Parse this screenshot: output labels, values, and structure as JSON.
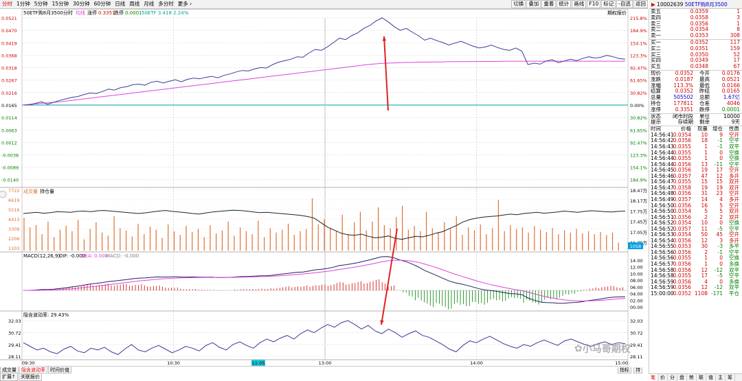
{
  "toolbar": {
    "items": [
      "分时",
      "1分钟",
      "5分钟",
      "15分钟",
      "30分钟",
      "60分钟",
      "日线",
      "周线",
      "月线",
      "多分时",
      "更多"
    ],
    "right_buttons": [
      "切换",
      "叠加",
      "重着",
      "统计",
      "画线",
      "F10",
      "标记",
      "-自选",
      "返回"
    ]
  },
  "header": {
    "code_name": "50ETF购8月3500",
    "label_fenshi": "分时",
    "label_junxian": "均线",
    "zhang_label": "涨停",
    "zhang_value": "0.3351",
    "die_label": "跌停",
    "die_value": "0.0001",
    "underlying": "50ETF 3.418 2.24%",
    "right_tag": "期权报价"
  },
  "price_axis": {
    "left": [
      "0.0521",
      "0.0470",
      "0.0419",
      "0.0368",
      "0.0318",
      "0.0267",
      "0.0216",
      "0.0165",
      "0.0114",
      "0.0063",
      "0.0012",
      "-0.0038",
      "-0.0089",
      "-0.0140"
    ],
    "right": [
      "215.8%",
      "184.9%",
      "154.1%",
      "123.3%",
      "92.47%",
      "61.65%",
      "30.82%",
      "0.00%",
      "30.82%",
      "61.65%",
      "92.47%",
      "123.3%",
      "154.1%",
      "184.9%"
    ]
  },
  "volume_panel": {
    "title": "成交量",
    "subtitle": "持仓量",
    "left_axis": [
      "7722",
      "6619",
      "5516",
      "4413",
      "3309",
      "2206",
      "1103"
    ],
    "right_axis": [
      "18.47万",
      "18.17万",
      "17.75万",
      "17.45万",
      "17.05万",
      "16.75万"
    ],
    "current_value": "1058"
  },
  "macd_panel": {
    "title": "MACD(12,26,9)",
    "dif": "DIF: -0.000",
    "dea": "DEA: 0.000",
    "macd": "MACD: -0.000",
    "left_axis": [
      "14.00",
      "12.00",
      "10.00",
      "08.00",
      "06.00",
      "04.00",
      "02.00",
      "00.00"
    ],
    "right_axis": [
      "14.00",
      "12.00",
      "10.00",
      "08.00",
      "06.00",
      "04.00",
      "02.00",
      "00.00"
    ]
  },
  "iv_panel": {
    "title": "隐含波动率: 29.43%",
    "left_axis": [
      "32.03",
      "30.72",
      "29.41",
      "28.11"
    ],
    "right_axis": [
      "32.03",
      "30.72",
      "29.41",
      "28.11"
    ]
  },
  "time_axis": [
    "09:30",
    "10:30",
    "11:05",
    "13:00",
    "14:00",
    "15:00"
  ],
  "bottom_tabs": {
    "row1": [
      "成交量",
      "隐含波动率",
      "时间价值"
    ],
    "row2": [
      "扩展↑",
      "关联报价"
    ],
    "right_small": [
      "指标",
      "持"
    ]
  },
  "right_panel": {
    "title_flag": "▶",
    "code": "10002639",
    "name": "50ETF购8月3500",
    "asks": [
      {
        "label": "卖五",
        "price": "0.0359",
        "vol": "1"
      },
      {
        "label": "卖四",
        "price": "0.0358",
        "vol": "3"
      },
      {
        "label": "卖三",
        "price": "0.0356",
        "vol": "1"
      },
      {
        "label": "卖二",
        "price": "0.0354",
        "vol": "8"
      },
      {
        "label": "卖一",
        "price": "0.0353",
        "vol": "308"
      }
    ],
    "bids": [
      {
        "label": "买一",
        "price": "0.0352",
        "vol": "117"
      },
      {
        "label": "买二",
        "price": "0.0351",
        "vol": "159"
      },
      {
        "label": "买三",
        "price": "0.0350",
        "vol": "52"
      },
      {
        "label": "买四",
        "price": "0.0349",
        "vol": "17"
      },
      {
        "label": "买五",
        "price": "0.0348",
        "vol": "67"
      }
    ],
    "stats": [
      {
        "l1": "现价",
        "v1": "0.0352",
        "l2": "今开",
        "v2": "0.0176"
      },
      {
        "l1": "涨跌",
        "v1": "0.0187",
        "l2": "最高",
        "v2": "0.0521"
      },
      {
        "l1": "涨幅",
        "v1": "113.3%",
        "l2": "最低",
        "v2": "0.0166"
      },
      {
        "l1": "结算",
        "v1": "0.0352",
        "l2": "昨结",
        "v2": "0.0165"
      },
      {
        "l1": "总量",
        "v1": "505502",
        "l2": "总额",
        "v2": "1.67亿"
      },
      {
        "l1": "持仓",
        "v1": "177811",
        "l2": "仓差",
        "v2": "4046"
      },
      {
        "l1": "涨停",
        "v1": "0.3351",
        "l2": "跌停",
        "v2": "0.0001"
      }
    ],
    "status": {
      "l1": "状态",
      "v1": "闭市时段",
      "l2": "单位",
      "v2": "10000"
    },
    "tip": {
      "l1": "提示",
      "v1": "存续期",
      "l2": "剩余",
      "v2": "9天"
    },
    "trades_header": [
      "时间",
      "价格",
      "现量",
      "增仓",
      "性质"
    ],
    "trades": [
      [
        "14:56:41",
        "0.0354",
        "10",
        "9",
        "空开"
      ],
      [
        "14:56:42",
        "0.0356",
        "18",
        "-1",
        "空平"
      ],
      [
        "14:56:43",
        "0.0355",
        "1",
        "-1",
        "双平"
      ],
      [
        "14:56:44",
        "0.0355",
        "1",
        "0",
        "空换"
      ],
      [
        "14:56:44",
        "0.0355",
        "1",
        "0",
        "空换"
      ],
      [
        "14:56:44",
        "0.0356",
        "13",
        "-11",
        "空平"
      ],
      [
        "14:56:45",
        "0.0356",
        "19",
        "17",
        "空开"
      ],
      [
        "14:56:46",
        "0.0357",
        "47",
        "12",
        "多开"
      ],
      [
        "14:56:47",
        "0.0355",
        "15",
        "15",
        "双开"
      ],
      [
        "14:56:47",
        "0.0358",
        "19",
        "19",
        "双开"
      ],
      [
        "14:56:48",
        "0.0356",
        "31",
        "23",
        "空开"
      ],
      [
        "14:56:49",
        "0.0357",
        "14",
        "4",
        "多开"
      ],
      [
        "14:56:50",
        "0.0356",
        "16",
        "5",
        "空开"
      ],
      [
        "14:56:50",
        "0.0354",
        "5",
        "5",
        "双开"
      ],
      [
        "14:56:51",
        "0.0356",
        "2",
        "2",
        "双开"
      ],
      [
        "14:56:52",
        "0.0354",
        "10",
        "0",
        "空换"
      ],
      [
        "14:56:52",
        "0.0357",
        "11",
        "-5",
        "空平"
      ],
      [
        "14:56:53",
        "0.0354",
        "50",
        "45",
        "空开"
      ],
      [
        "14:56:54",
        "0.0356",
        "12",
        "3",
        "多开"
      ],
      [
        "14:56:55",
        "0.0353",
        "30",
        "-3",
        "多平"
      ],
      [
        "14:56:56",
        "0.0356",
        "2",
        "-1",
        "空平"
      ],
      [
        "14:56:56",
        "0.0355",
        "1",
        "0",
        "空换"
      ],
      [
        "14:56:57",
        "0.0356",
        "1",
        "0",
        "多换"
      ],
      [
        "14:56:58",
        "0.0356",
        "12",
        "-12",
        "双平"
      ],
      [
        "14:56:58",
        "0.0355",
        "17",
        "-5",
        "空平"
      ],
      [
        "14:56:59",
        "0.0356",
        "4",
        "0",
        "多换"
      ],
      [
        "14:56:59",
        "0.0356",
        "12",
        "-12",
        "双平"
      ],
      [
        "15:00:00",
        "0.0352",
        "1108",
        "-171",
        "平仓"
      ]
    ],
    "bottom_tabs": [
      "笔",
      "价",
      "分",
      "盘",
      "势",
      "联",
      "值",
      "主",
      "筹"
    ]
  },
  "watermark": "小马哥期权",
  "colors": {
    "price_line": "#3a3a9a",
    "avg_line": "#e040e0",
    "volume_bar": "#e07030",
    "rise": "#d00000",
    "fall": "#008000",
    "zero_line": "#00a0a0",
    "red_arrow": "#e02020"
  },
  "series": {
    "price": [
      0.0165,
      0.0165,
      0.0172,
      0.0178,
      0.0168,
      0.0176,
      0.0184,
      0.019,
      0.0196,
      0.02,
      0.0208,
      0.0214,
      0.0212,
      0.022,
      0.023,
      0.0226,
      0.0236,
      0.024,
      0.0248,
      0.025,
      0.0246,
      0.0258,
      0.0262,
      0.0255,
      0.0262,
      0.0268,
      0.026,
      0.027,
      0.0275,
      0.0272,
      0.0278,
      0.0282,
      0.0276,
      0.0286,
      0.0292,
      0.03,
      0.0306,
      0.0304,
      0.0312,
      0.0318,
      0.0316,
      0.033,
      0.034,
      0.0346,
      0.0352,
      0.0362,
      0.036,
      0.0378,
      0.0392,
      0.0388,
      0.0402,
      0.042,
      0.0438,
      0.0432,
      0.0448,
      0.046,
      0.0478,
      0.049,
      0.0508,
      0.0521,
      0.0505,
      0.0485,
      0.047,
      0.0478,
      0.0462,
      0.0448,
      0.043,
      0.0438,
      0.0428,
      0.042,
      0.041,
      0.0418,
      0.0425,
      0.0415,
      0.0405,
      0.0398,
      0.0402,
      0.041,
      0.04,
      0.0392,
      0.0388,
      0.0398,
      0.0385,
      0.033,
      0.0336,
      0.0332,
      0.0345,
      0.035,
      0.0338,
      0.0345,
      0.0352,
      0.0346,
      0.0355,
      0.0362,
      0.0357,
      0.036,
      0.0368,
      0.0362,
      0.0355,
      0.0352
    ],
    "avg": [
      0.0165,
      0.0168,
      0.017,
      0.0172,
      0.0174,
      0.0176,
      0.0178,
      0.0181,
      0.0184,
      0.0187,
      0.019,
      0.0193,
      0.0196,
      0.0199,
      0.0202,
      0.0205,
      0.0208,
      0.0211,
      0.0214,
      0.0217,
      0.022,
      0.0223,
      0.0226,
      0.0229,
      0.0232,
      0.0235,
      0.0238,
      0.0241,
      0.0244,
      0.0247,
      0.025,
      0.0253,
      0.0256,
      0.0259,
      0.0262,
      0.0265,
      0.0268,
      0.0271,
      0.0274,
      0.0277,
      0.028,
      0.0283,
      0.0286,
      0.0289,
      0.0292,
      0.0295,
      0.0298,
      0.0301,
      0.0304,
      0.0307,
      0.031,
      0.0313,
      0.0316,
      0.0319,
      0.0322,
      0.0325,
      0.0328,
      0.0331,
      0.0333,
      0.0335,
      0.0336,
      0.0337,
      0.0338,
      0.0339,
      0.0339,
      0.034,
      0.034,
      0.0341,
      0.0341,
      0.0341,
      0.0342,
      0.0342,
      0.0342,
      0.0342,
      0.0343,
      0.0343,
      0.0343,
      0.0343,
      0.0343,
      0.0344,
      0.0344,
      0.0344,
      0.0344,
      0.0344,
      0.0344,
      0.0344,
      0.0344,
      0.0344,
      0.0344,
      0.0344,
      0.0344,
      0.0344,
      0.0344,
      0.0344,
      0.0344,
      0.0344,
      0.0344,
      0.0344,
      0.0344,
      0.0344
    ],
    "iv": [
      29.6,
      29.2,
      28.8,
      29.0,
      28.6,
      28.4,
      28.9,
      29.2,
      28.7,
      28.5,
      29.0,
      28.8,
      29.1,
      28.6,
      28.3,
      28.9,
      29.4,
      28.8,
      28.6,
      29.0,
      29.3,
      28.9,
      28.5,
      28.8,
      29.2,
      29.0,
      28.7,
      29.3,
      29.6,
      29.1,
      28.8,
      29.4,
      29.7,
      29.3,
      29.0,
      29.6,
      30.0,
      29.7,
      30.1,
      30.4,
      30.0,
      30.6,
      31.0,
      30.7,
      31.2,
      31.6,
      31.3,
      31.8,
      32.03,
      31.6,
      31.1,
      31.5,
      30.9,
      30.6,
      31.1,
      30.7,
      30.2,
      30.6,
      30.9,
      30.4,
      30.2,
      29.8,
      29.4,
      28.9,
      28.6,
      29.3,
      29.8,
      29.6,
      30.0,
      30.3,
      29.9,
      29.5,
      29.2,
      29.0,
      29.4,
      29.2,
      29.6,
      29.9,
      29.6,
      29.3,
      29.8,
      30.0,
      29.7,
      29.4,
      29.2,
      29.5,
      29.7,
      29.4,
      29.6,
      29.5
    ],
    "volume": [
      4400,
      3100,
      3400,
      2200,
      3900,
      1800,
      2800,
      3300,
      2600,
      4100,
      1500,
      2900,
      3800,
      2400,
      2000,
      4600,
      3000,
      2700,
      1900,
      3600,
      2200,
      3200,
      2800,
      1700,
      3500,
      2600,
      2100,
      3300,
      2500,
      2900,
      1800,
      3400,
      2300,
      2700,
      3900,
      2000,
      3100,
      2600,
      2200,
      4000,
      1800,
      3000,
      2400,
      2800,
      3600,
      2100,
      2600,
      2900,
      7000,
      3500,
      4200,
      3000,
      2600,
      4800,
      2200,
      3800,
      5200,
      2700,
      3900,
      5800,
      3400,
      3000,
      4500,
      6000,
      2800,
      3300,
      2600,
      5200,
      3000,
      2400,
      3800,
      2900,
      4600,
      2100,
      3100,
      2700,
      3500,
      2200,
      3000,
      6800,
      2600,
      3400,
      2900,
      3100,
      2400,
      3300,
      2800,
      2500,
      3000,
      2200,
      2700,
      2400,
      2900,
      2300,
      2600,
      2200,
      2500,
      2100,
      2400,
      1058
    ],
    "oi": [
      17.7,
      17.72,
      17.74,
      17.71,
      17.73,
      17.76,
      17.75,
      17.74,
      17.77,
      17.78,
      17.76,
      17.79,
      17.8,
      17.78,
      17.76,
      17.74,
      17.72,
      17.7,
      17.72,
      17.75,
      17.78,
      17.8,
      17.77,
      17.75,
      17.73,
      17.7,
      17.68,
      17.72,
      17.75,
      17.77,
      17.79,
      17.81,
      17.8,
      17.78,
      17.75,
      17.73,
      17.74,
      17.72,
      17.7,
      17.68,
      17.66,
      17.64,
      17.6,
      17.55,
      17.4,
      17.25,
      17.15,
      17.05,
      17.0,
      16.98,
      17.02,
      16.95,
      16.9,
      16.92,
      16.96,
      16.88,
      16.85,
      16.9,
      16.95,
      16.93,
      16.98,
      17.05,
      17.1,
      17.2,
      17.3,
      17.42,
      17.5,
      17.55,
      17.58,
      17.6,
      17.62,
      17.65,
      17.68,
      17.66,
      17.7,
      17.72,
      17.74,
      17.71,
      17.73,
      17.75,
      17.78,
      17.76,
      17.74,
      17.77,
      17.79,
      17.78,
      17.76,
      17.75,
      17.77,
      17.78
    ]
  }
}
